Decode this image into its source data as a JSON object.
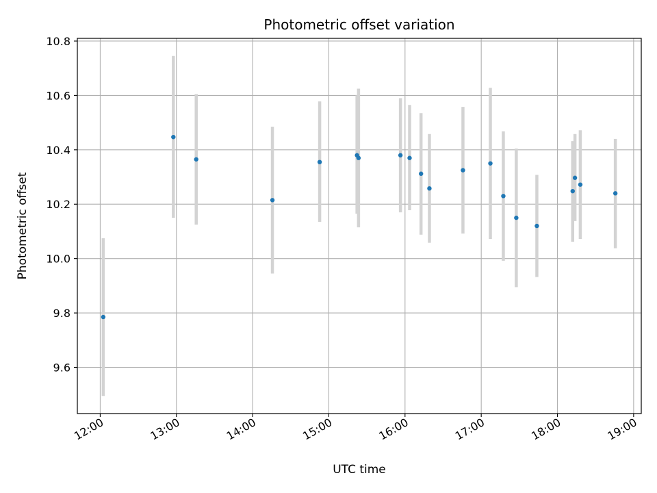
{
  "chart_data": {
    "type": "scatter",
    "title": "Photometric offset variation",
    "xlabel": "UTC time",
    "ylabel": "Photometric offset",
    "x_unit": "UTC time (hours)",
    "xlim": [
      11.7,
      19.1
    ],
    "ylim": [
      9.43,
      10.81
    ],
    "grid": true,
    "x_ticks": [
      {
        "value": 12,
        "label": "12:00"
      },
      {
        "value": 13,
        "label": "13:00"
      },
      {
        "value": 14,
        "label": "14:00"
      },
      {
        "value": 15,
        "label": "15:00"
      },
      {
        "value": 16,
        "label": "16:00"
      },
      {
        "value": 17,
        "label": "17:00"
      },
      {
        "value": 18,
        "label": "18:00"
      },
      {
        "value": 19,
        "label": "19:00"
      }
    ],
    "y_ticks": [
      {
        "value": 9.6,
        "label": "9.6"
      },
      {
        "value": 9.8,
        "label": "9.8"
      },
      {
        "value": 10.0,
        "label": "10.0"
      },
      {
        "value": 10.2,
        "label": "10.2"
      },
      {
        "value": 10.4,
        "label": "10.4"
      },
      {
        "value": 10.6,
        "label": "10.6"
      },
      {
        "value": 10.8,
        "label": "10.8"
      }
    ],
    "colors": {
      "point": "#1f77b4",
      "errorbar": "#d3d3d3",
      "grid": "#b0b0b0",
      "axis": "#000000"
    },
    "points": [
      {
        "x": 12.04,
        "y": 9.785,
        "ylow": 9.495,
        "yhigh": 10.075
      },
      {
        "x": 12.96,
        "y": 10.447,
        "ylow": 10.15,
        "yhigh": 10.745
      },
      {
        "x": 13.26,
        "y": 10.365,
        "ylow": 10.125,
        "yhigh": 10.605
      },
      {
        "x": 14.26,
        "y": 10.215,
        "ylow": 9.945,
        "yhigh": 10.485
      },
      {
        "x": 14.88,
        "y": 10.355,
        "ylow": 10.135,
        "yhigh": 10.578
      },
      {
        "x": 15.37,
        "y": 10.38,
        "ylow": 10.165,
        "yhigh": 10.6
      },
      {
        "x": 15.39,
        "y": 10.37,
        "ylow": 10.115,
        "yhigh": 10.625
      },
      {
        "x": 15.94,
        "y": 10.38,
        "ylow": 10.17,
        "yhigh": 10.59
      },
      {
        "x": 16.06,
        "y": 10.37,
        "ylow": 10.178,
        "yhigh": 10.565
      },
      {
        "x": 16.21,
        "y": 10.312,
        "ylow": 10.088,
        "yhigh": 10.535
      },
      {
        "x": 16.32,
        "y": 10.258,
        "ylow": 10.058,
        "yhigh": 10.458
      },
      {
        "x": 16.76,
        "y": 10.325,
        "ylow": 10.092,
        "yhigh": 10.558
      },
      {
        "x": 17.12,
        "y": 10.35,
        "ylow": 10.072,
        "yhigh": 10.628
      },
      {
        "x": 17.29,
        "y": 10.23,
        "ylow": 9.992,
        "yhigh": 10.468
      },
      {
        "x": 17.46,
        "y": 10.15,
        "ylow": 9.895,
        "yhigh": 10.405
      },
      {
        "x": 17.73,
        "y": 10.12,
        "ylow": 9.932,
        "yhigh": 10.308
      },
      {
        "x": 18.2,
        "y": 10.248,
        "ylow": 10.062,
        "yhigh": 10.432
      },
      {
        "x": 18.23,
        "y": 10.297,
        "ylow": 10.138,
        "yhigh": 10.458
      },
      {
        "x": 18.3,
        "y": 10.272,
        "ylow": 10.072,
        "yhigh": 10.472
      },
      {
        "x": 18.76,
        "y": 10.24,
        "ylow": 10.038,
        "yhigh": 10.44
      }
    ]
  }
}
